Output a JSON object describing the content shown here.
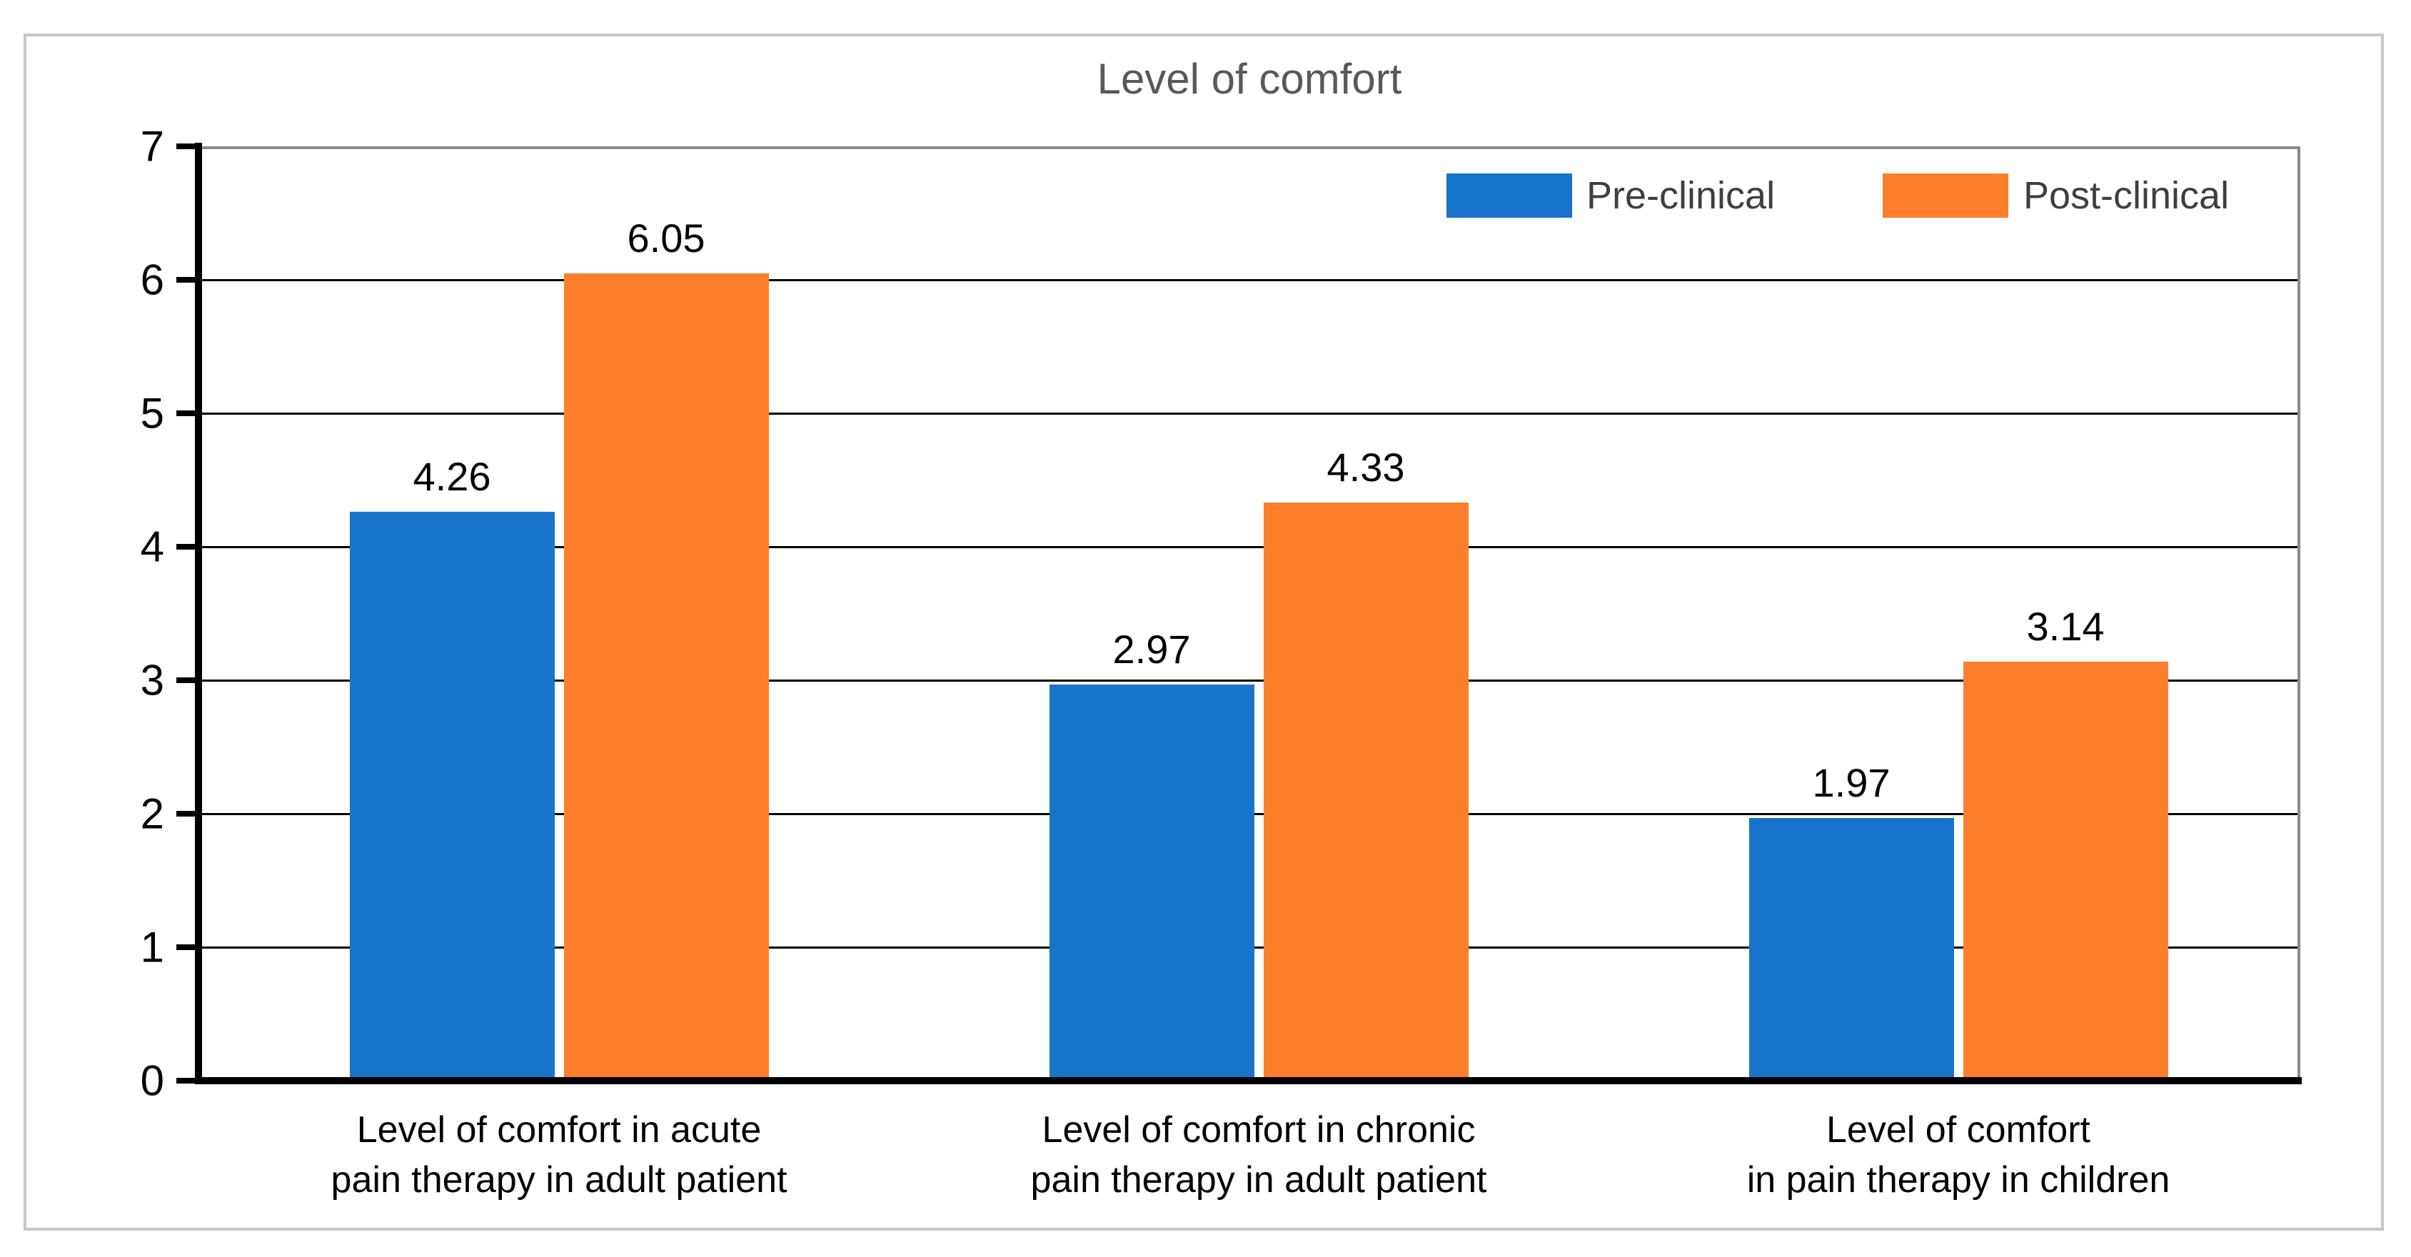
{
  "figure": {
    "title": "Level of comfort",
    "background_color": "#FFFFFF",
    "outer_border_color": "#C7C7C7",
    "title_color": "#595959"
  },
  "chart_data": {
    "type": "bar",
    "title": "Level of comfort",
    "categories": [
      "Level of comfort in acute pain therapy in adult patient",
      "Level of comfort in chronic pain therapy in adult patient",
      "Level of comfort in pain therapy in children"
    ],
    "category_lines": [
      [
        "Level of comfort in acute",
        "pain therapy in adult patient"
      ],
      [
        "Level of comfort in chronic",
        "pain therapy in adult patient"
      ],
      [
        "Level of comfort",
        "in pain therapy in children"
      ]
    ],
    "series": [
      {
        "name": "Pre-clinical",
        "color": "#1874CA",
        "values": [
          4.26,
          2.97,
          1.97
        ]
      },
      {
        "name": "Post-clinical",
        "color": "#FD7E2B",
        "values": [
          6.05,
          4.33,
          3.14
        ]
      }
    ],
    "data_labels": {
      "Pre-clinical": [
        "4.26",
        "2.97",
        "1.97"
      ],
      "Post-clinical": [
        "6.05",
        "4.33",
        "3.14"
      ]
    },
    "xlabel": "",
    "ylabel": "",
    "ylim": [
      0,
      7
    ],
    "yticks": [
      "0",
      "1",
      "2",
      "3",
      "4",
      "5",
      "6",
      "7"
    ],
    "grid": "horizontal major gridlines",
    "legend_position": "inside top-right",
    "style_colors": {
      "gridline": "#000000",
      "axis": "#000000",
      "plot_border": "#8A8A8A",
      "tick_labels": "#000000",
      "data_labels": "#000000",
      "legend_text": "#3F3F3F"
    }
  }
}
